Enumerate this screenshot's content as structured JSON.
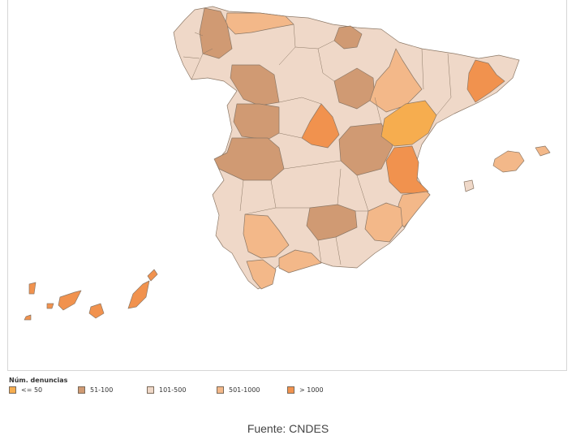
{
  "legend": {
    "title": "Núm. denuncias",
    "items": [
      {
        "label": "<= 50",
        "color": "#f6ad4f"
      },
      {
        "label": "51-100",
        "color": "#d09a73"
      },
      {
        "label": "101-500",
        "color": "#efd8c8"
      },
      {
        "label": "501-1000",
        "color": "#f3b889"
      },
      {
        "label": "> 1000",
        "color": "#f1924e"
      }
    ]
  },
  "source": "Fuente: CNDES",
  "colors": {
    "stroke": "#8c7866",
    "frame": "#d6d6d6"
  },
  "regions": [
    {
      "name": "Galicia",
      "category": "101-500"
    },
    {
      "name": "Asturias",
      "category": "501-1000"
    },
    {
      "name": "Cantabria",
      "category": "101-500"
    },
    {
      "name": "Pais Vasco",
      "category": "101-500"
    },
    {
      "name": "Vizcaya",
      "category": "51-100"
    },
    {
      "name": "Navarra",
      "category": "101-500"
    },
    {
      "name": "Leon",
      "category": "51-100"
    },
    {
      "name": "Zamora",
      "category": "51-100"
    },
    {
      "name": "Salamanca",
      "category": "51-100"
    },
    {
      "name": "Caceres",
      "category": "51-100"
    },
    {
      "name": "Madrid",
      "category": "> 1000"
    },
    {
      "name": "Cuenca",
      "category": "51-100"
    },
    {
      "name": "Teruel",
      "category": "<= 50"
    },
    {
      "name": "Zaragoza",
      "category": "501-1000"
    },
    {
      "name": "Barcelona",
      "category": "> 1000"
    },
    {
      "name": "Valencia",
      "category": "> 1000"
    },
    {
      "name": "Alicante",
      "category": "501-1000"
    },
    {
      "name": "Jaen",
      "category": "51-100"
    },
    {
      "name": "Sevilla",
      "category": "501-1000"
    },
    {
      "name": "Cadiz",
      "category": "501-1000"
    },
    {
      "name": "Malaga",
      "category": "501-1000"
    },
    {
      "name": "Murcia",
      "category": "501-1000"
    },
    {
      "name": "Baleares",
      "category": "501-1000"
    },
    {
      "name": "Canarias",
      "category": "> 1000"
    }
  ]
}
